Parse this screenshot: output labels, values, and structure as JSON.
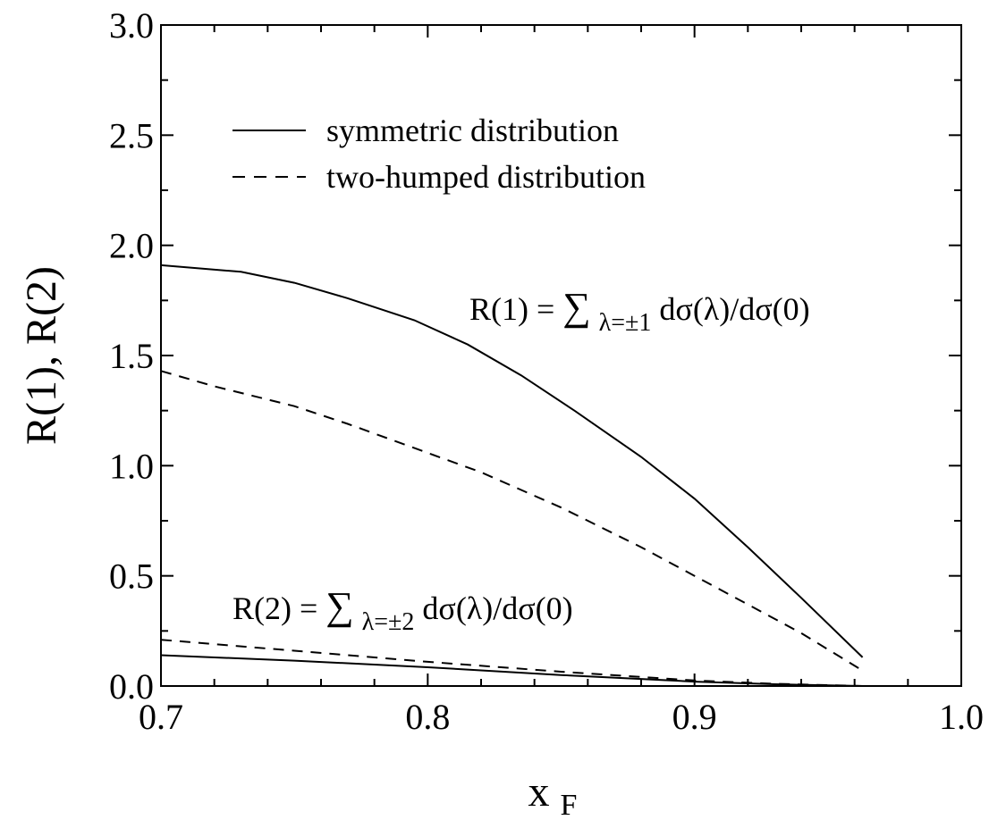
{
  "chart_data": {
    "type": "line",
    "title": "",
    "xlabel": "x",
    "xlabel_sub": "F",
    "ylabel": "R(1), R(2)",
    "xlim": [
      0.7,
      1.0
    ],
    "ylim": [
      0.0,
      3.0
    ],
    "x_ticks": [
      "0.7",
      "0.8",
      "0.9",
      "1.0"
    ],
    "y_ticks": [
      "0.0",
      "0.5",
      "1.0",
      "1.5",
      "2.0",
      "2.5",
      "3.0"
    ],
    "grid": false,
    "legend": {
      "placement": "top-left",
      "entries": [
        {
          "label": "symmetric distribution",
          "style": "solid"
        },
        {
          "label": "two-humped distribution",
          "style": "dashed"
        }
      ]
    },
    "annotations": {
      "r1": {
        "lhs": "R(1) = ",
        "sum": "∑",
        "sub": "λ=±1",
        "rhs": " dσ(λ)/dσ(0)"
      },
      "r2": {
        "lhs": "R(2) = ",
        "sum": "∑",
        "sub": "λ=±2",
        "rhs": " dσ(λ)/dσ(0)"
      }
    },
    "series": [
      {
        "key": "R1-symmetric",
        "style": "solid",
        "x": [
          0.7,
          0.73,
          0.75,
          0.77,
          0.795,
          0.815,
          0.835,
          0.855,
          0.88,
          0.9,
          0.92,
          0.94,
          0.963
        ],
        "y": [
          1.91,
          1.88,
          1.83,
          1.76,
          1.66,
          1.55,
          1.41,
          1.25,
          1.04,
          0.85,
          0.63,
          0.4,
          0.13
        ]
      },
      {
        "key": "R1-two-humped",
        "style": "dashed",
        "x": [
          0.7,
          0.72,
          0.75,
          0.77,
          0.795,
          0.82,
          0.85,
          0.88,
          0.9,
          0.92,
          0.94,
          0.963
        ],
        "y": [
          1.43,
          1.36,
          1.27,
          1.19,
          1.08,
          0.97,
          0.81,
          0.63,
          0.5,
          0.37,
          0.24,
          0.07
        ]
      },
      {
        "key": "R2-symmetric",
        "style": "solid",
        "x": [
          0.7,
          0.75,
          0.8,
          0.85,
          0.9,
          0.93,
          0.963
        ],
        "y": [
          0.14,
          0.115,
          0.085,
          0.05,
          0.02,
          0.008,
          0.0
        ]
      },
      {
        "key": "R2-two-humped",
        "style": "dashed",
        "x": [
          0.7,
          0.75,
          0.8,
          0.85,
          0.9,
          0.93,
          0.963
        ],
        "y": [
          0.21,
          0.16,
          0.11,
          0.065,
          0.025,
          0.01,
          0.0
        ]
      }
    ]
  }
}
